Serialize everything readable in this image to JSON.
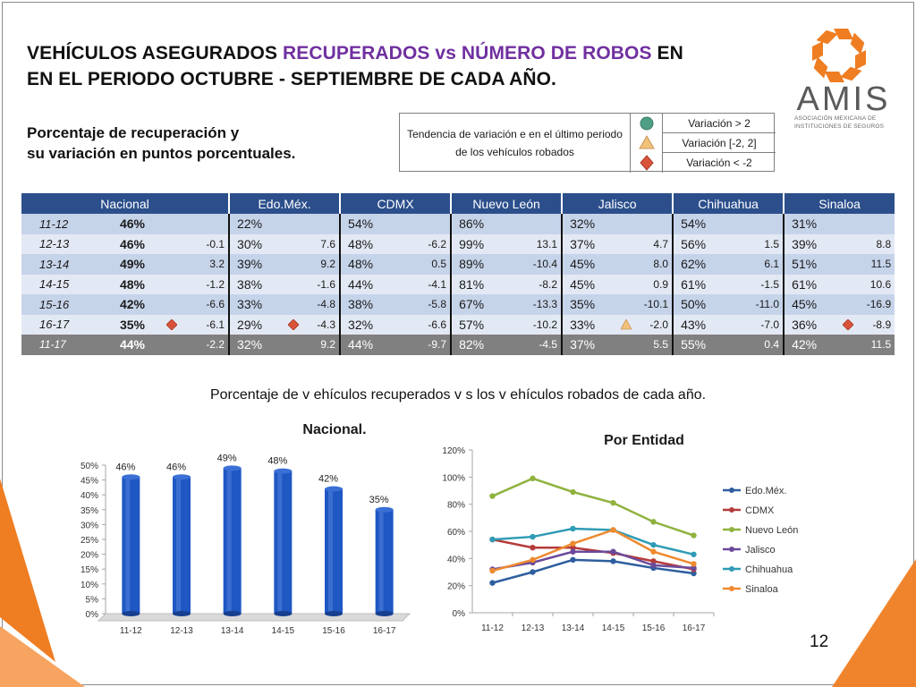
{
  "header": {
    "title_line1_a": "VEHÍCULOS ASEGURADOS ",
    "title_line1_b": "RECUPERADOS vs NÚMERO DE ROBOS",
    "title_line1_c": " EN",
    "title_line2": "EN EL PERIODO OCTUBRE - SEPTIEMBRE DE CADA AÑO.",
    "subtitle_line1": "Porcentaje de recuperación y",
    "subtitle_line2": "su variación en puntos porcentuales."
  },
  "logo": {
    "name": "AMIS",
    "sub_line1": "ASOCIACIÓN MEXICANA DE",
    "sub_line2": "INSTITUCIONES DE SEGUROS"
  },
  "legend": {
    "description": "Tendencia de variación e en el último periodo de los vehículos robados",
    "items": [
      {
        "label": "Variación > 2",
        "icon": "green-circle-icon",
        "color": "#4e9f85"
      },
      {
        "label": "Variación [-2, 2]",
        "icon": "yellow-triangle-icon",
        "color": "#f2c27a"
      },
      {
        "label": "Variación < -2",
        "icon": "red-diamond-icon",
        "color": "#d9533a"
      }
    ]
  },
  "table": {
    "headers": [
      "Nacional",
      "Edo.Méx.",
      "CDMX",
      "Nuevo León",
      "Jalisco",
      "Chihuahua",
      "Sinaloa"
    ],
    "rows": [
      {
        "period": "11-12",
        "nat": "46%",
        "nat_var": "",
        "cells": [
          [
            "22%",
            ""
          ],
          [
            "54%",
            ""
          ],
          [
            "86%",
            ""
          ],
          [
            "32%",
            ""
          ],
          [
            "54%",
            ""
          ],
          [
            "31%",
            ""
          ]
        ]
      },
      {
        "period": "12-13",
        "nat": "46%",
        "nat_var": "-0.1",
        "cells": [
          [
            "30%",
            "7.6"
          ],
          [
            "48%",
            "-6.2"
          ],
          [
            "99%",
            "13.1"
          ],
          [
            "37%",
            "4.7"
          ],
          [
            "56%",
            "1.5"
          ],
          [
            "39%",
            "8.8"
          ]
        ]
      },
      {
        "period": "13-14",
        "nat": "49%",
        "nat_var": "3.2",
        "cells": [
          [
            "39%",
            "9.2"
          ],
          [
            "48%",
            "0.5"
          ],
          [
            "89%",
            "-10.4"
          ],
          [
            "45%",
            "8.0"
          ],
          [
            "62%",
            "6.1"
          ],
          [
            "51%",
            "11.5"
          ]
        ]
      },
      {
        "period": "14-15",
        "nat": "48%",
        "nat_var": "-1.2",
        "cells": [
          [
            "38%",
            "-1.6"
          ],
          [
            "44%",
            "-4.1"
          ],
          [
            "81%",
            "-8.2"
          ],
          [
            "45%",
            "0.9"
          ],
          [
            "61%",
            "-1.5"
          ],
          [
            "61%",
            "10.6"
          ]
        ]
      },
      {
        "period": "15-16",
        "nat": "42%",
        "nat_var": "-6.6",
        "cells": [
          [
            "33%",
            "-4.8"
          ],
          [
            "38%",
            "-5.8"
          ],
          [
            "67%",
            "-13.3"
          ],
          [
            "35%",
            "-10.1"
          ],
          [
            "50%",
            "-11.0"
          ],
          [
            "45%",
            "-16.9"
          ]
        ]
      },
      {
        "period": "16-17",
        "nat": "35%",
        "nat_var": "-6.1",
        "cells": [
          [
            "29%",
            "-4.3"
          ],
          [
            "32%",
            "-6.6"
          ],
          [
            "57%",
            "-10.2"
          ],
          [
            "33%",
            "-2.0"
          ],
          [
            "43%",
            "-7.0"
          ],
          [
            "36%",
            "-8.9"
          ]
        ]
      }
    ],
    "marker_row_markers": [
      "red-diamond-icon",
      "red-diamond-icon",
      "",
      "",
      "yellow-triangle-icon",
      "",
      "red-diamond-icon"
    ],
    "total": {
      "period": "11-17",
      "nat": "44%",
      "nat_var": "-2.2",
      "cells": [
        [
          "32%",
          "9.2"
        ],
        [
          "44%",
          "-9.7"
        ],
        [
          "82%",
          "-4.5"
        ],
        [
          "37%",
          "5.5"
        ],
        [
          "55%",
          "0.4"
        ],
        [
          "42%",
          "11.5"
        ]
      ]
    }
  },
  "caption": "Porcentaje de v ehículos recuperados v s los v ehículos robados de cada año.",
  "chart1_title": "Nacional.",
  "chart2_title": "Por Entidad",
  "page_number": "12",
  "chart_data": [
    {
      "type": "bar",
      "title": "Nacional.",
      "categories": [
        "11-12",
        "12-13",
        "13-14",
        "14-15",
        "15-16",
        "16-17"
      ],
      "values": [
        46,
        46,
        49,
        48,
        42,
        35
      ],
      "value_labels": [
        "46%",
        "46%",
        "49%",
        "48%",
        "42%",
        "35%"
      ],
      "yticks": [
        "0%",
        "5%",
        "10%",
        "15%",
        "20%",
        "25%",
        "30%",
        "35%",
        "40%",
        "45%",
        "50%"
      ],
      "ylim": [
        0,
        50
      ],
      "color": "#1f57c3"
    },
    {
      "type": "line",
      "title": "Por Entidad",
      "categories": [
        "11-12",
        "12-13",
        "13-14",
        "14-15",
        "15-16",
        "16-17"
      ],
      "yticks": [
        "0%",
        "20%",
        "40%",
        "60%",
        "80%",
        "100%",
        "120%"
      ],
      "ylim": [
        0,
        120
      ],
      "legend_position": "right",
      "series": [
        {
          "name": "Edo.Méx.",
          "color": "#2e5e9e",
          "values": [
            22,
            30,
            39,
            38,
            33,
            29
          ]
        },
        {
          "name": "CDMX",
          "color": "#b43b3b",
          "values": [
            54,
            48,
            48,
            44,
            38,
            32
          ]
        },
        {
          "name": "Nuevo León",
          "color": "#8fb23f",
          "values": [
            86,
            99,
            89,
            81,
            67,
            57
          ]
        },
        {
          "name": "Jalisco",
          "color": "#6b4a9a",
          "values": [
            32,
            37,
            45,
            45,
            35,
            33
          ]
        },
        {
          "name": "Chihuahua",
          "color": "#2f9bb5",
          "values": [
            54,
            56,
            62,
            61,
            50,
            43
          ]
        },
        {
          "name": "Sinaloa",
          "color": "#ee8a2f",
          "values": [
            31,
            39,
            51,
            61,
            45,
            36
          ]
        }
      ]
    }
  ]
}
